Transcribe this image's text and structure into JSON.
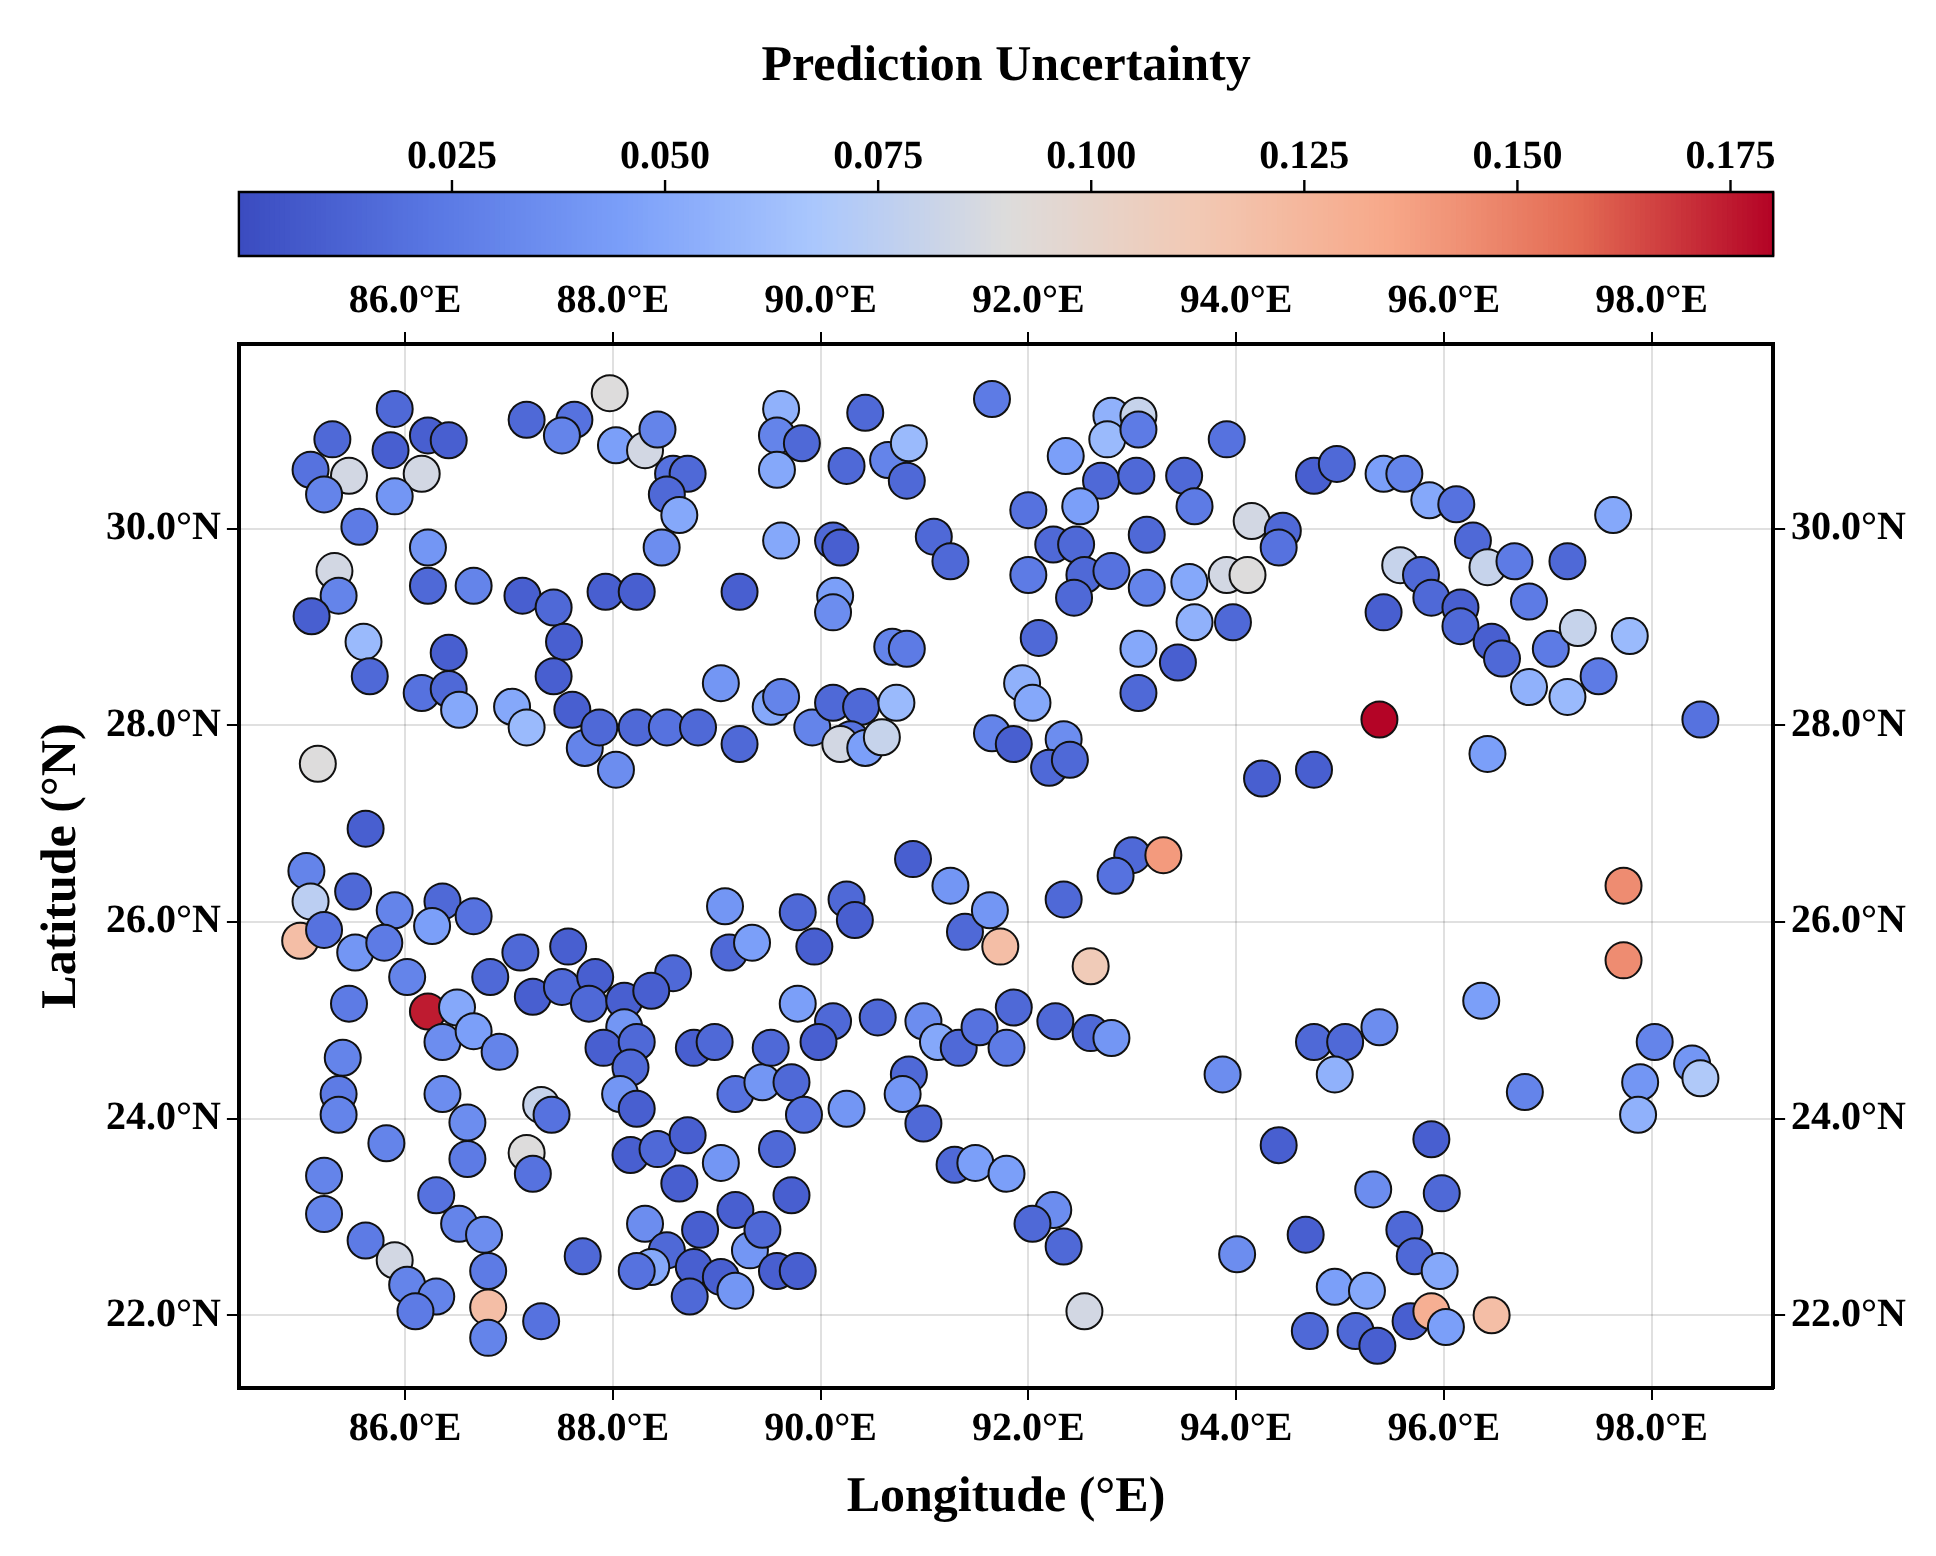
{
  "chart_data": {
    "type": "scatter",
    "xlabel": "Longitude (°E)",
    "ylabel": "Latitude (°N)",
    "clabel": "Prediction Uncertainty",
    "marker": "circle",
    "grid": true,
    "x": [
      85.3,
      85.09,
      85.46,
      85.22,
      85.9,
      85.86,
      86.22,
      86.42,
      86.16,
      85.9,
      85.56,
      85.32,
      85.36,
      85.1,
      85.6,
      85.66,
      86.22,
      86.22,
      86.66,
      86.16,
      86.42,
      86.42,
      86.52,
      87.03,
      87.17,
      87.17,
      87.63,
      87.51,
      87.97,
      88.03,
      88.31,
      88.43,
      88.58,
      88.72,
      88.52,
      88.64,
      88.47,
      87.13,
      87.43,
      87.53,
      87.43,
      87.61,
      87.73,
      87.87,
      88.23,
      88.52,
      88.82,
      88.03,
      87.93,
      88.23,
      89.22,
      89.04,
      89.22,
      89.52,
      89.62,
      89.92,
      90.12,
      90.39,
      90.29,
      90.19,
      90.43,
      90.59,
      90.73,
      90.12,
      90.19,
      89.62,
      89.58,
      89.82,
      89.58,
      89.62,
      90.43,
      90.25,
      90.65,
      90.85,
      90.83,
      91.09,
      91.25,
      90.14,
      90.12,
      90.69,
      90.83,
      91.65,
      85.16,
      85.62,
      90.89,
      92.8,
      93.06,
      92.76,
      93.06,
      92.36,
      93.91,
      92.7,
      93.04,
      93.5,
      92.0,
      92.5,
      93.6,
      92.24,
      92.46,
      93.14,
      92.0,
      92.54,
      92.8,
      92.44,
      93.14,
      93.55,
      94.15,
      94.45,
      94.41,
      93.91,
      94.11,
      93.6,
      93.97,
      93.06,
      93.44,
      93.06,
      92.1,
      91.94,
      92.04,
      91.65,
      91.86,
      92.34,
      92.2,
      92.4,
      94.25,
      94.75,
      95.38,
      94.75,
      94.97,
      95.42,
      95.62,
      95.86,
      96.12,
      95.58,
      95.78,
      96.28,
      96.42,
      96.68,
      97.19,
      95.42,
      95.88,
      96.16,
      96.16,
      96.46,
      96.82,
      96.56,
      97.03,
      97.29,
      97.49,
      96.82,
      97.19,
      97.79,
      97.63,
      98.47,
      96.42,
      85.05,
      85.09,
      84.99,
      85.22,
      85.5,
      85.52,
      85.9,
      85.8,
      86.36,
      86.26,
      86.66,
      86.02,
      86.22,
      86.5,
      86.36,
      86.66,
      86.91,
      85.46,
      85.4,
      85.36,
      85.36,
      85.82,
      85.22,
      85.22,
      85.62,
      85.9,
      86.02,
      86.3,
      86.1,
      86.8,
      86.8,
      87.31,
      86.36,
      86.6,
      86.6,
      86.3,
      86.52,
      86.76,
      86.8,
      87.31,
      87.41,
      87.17,
      87.23,
      87.71,
      87.11,
      86.82,
      87.23,
      87.57,
      87.51,
      87.83,
      87.77,
      88.11,
      88.58,
      88.37,
      88.11,
      87.91,
      88.23,
      88.78,
      88.98,
      88.17,
      88.07,
      88.23,
      88.17,
      88.43,
      88.72,
      89.04,
      88.64,
      88.31,
      88.52,
      88.84,
      88.78,
      89.32,
      89.18,
      89.44,
      89.04,
      88.74,
      89.18,
      89.58,
      89.78,
      88.37,
      88.23,
      89.18,
      89.44,
      89.72,
      89.84,
      89.58,
      89.72,
      89.52,
      89.08,
      89.12,
      89.34,
      89.78,
      90.25,
      89.94,
      90.33,
      89.78,
      90.12,
      89.98,
      90.25,
      90.55,
      91.25,
      91.39,
      91.63,
      91.73,
      90.99,
      91.13,
      90.85,
      90.79,
      90.99,
      91.33,
      91.53,
      91.29,
      91.49,
      93.0,
      93.3,
      92.84,
      92.34,
      92.6,
      91.86,
      92.26,
      92.6,
      92.8,
      91.79,
      93.87,
      94.75,
      95.05,
      95.38,
      94.95,
      96.36,
      96.78,
      98.03,
      97.89,
      97.87,
      98.39,
      98.47,
      97.73,
      97.73,
      94.41,
      95.88,
      95.32,
      95.98,
      94.67,
      94.01,
      91.79,
      92.24,
      92.04,
      92.34,
      92.54,
      95.62,
      95.72,
      95.96,
      94.95,
      95.26,
      94.71,
      95.15,
      95.36,
      95.68,
      95.88,
      96.02,
      96.46
    ],
    "values": [
      30.91,
      30.6,
      30.54,
      30.35,
      31.22,
      30.8,
      30.95,
      30.9,
      30.56,
      30.33,
      30.02,
      29.57,
      29.32,
      29.11,
      28.85,
      28.5,
      29.81,
      29.42,
      29.42,
      28.33,
      28.74,
      28.37,
      28.16,
      28.19,
      27.98,
      31.11,
      31.11,
      30.95,
      31.38,
      30.85,
      30.8,
      31.01,
      30.56,
      30.56,
      30.35,
      30.14,
      29.81,
      29.32,
      29.2,
      28.85,
      28.5,
      28.16,
      27.77,
      27.98,
      27.98,
      27.98,
      27.98,
      27.55,
      29.36,
      29.36,
      29.36,
      28.43,
      27.81,
      28.19,
      28.29,
      27.98,
      28.23,
      28.19,
      27.86,
      27.81,
      27.77,
      27.88,
      28.23,
      29.88,
      29.81,
      31.22,
      30.95,
      30.87,
      30.6,
      29.88,
      31.18,
      30.64,
      30.7,
      30.87,
      30.49,
      29.92,
      29.67,
      29.32,
      29.15,
      28.8,
      28.78,
      31.32,
      27.61,
      26.95,
      26.64,
      31.15,
      31.15,
      30.91,
      31.01,
      30.74,
      30.91,
      30.49,
      30.54,
      30.54,
      30.19,
      30.23,
      30.23,
      29.84,
      29.84,
      29.94,
      29.53,
      29.53,
      29.57,
      29.3,
      29.4,
      29.46,
      30.08,
      29.98,
      29.81,
      29.53,
      29.53,
      29.05,
      29.05,
      28.78,
      28.64,
      28.33,
      28.89,
      28.43,
      28.23,
      27.92,
      27.81,
      27.86,
      27.57,
      27.65,
      27.46,
      27.55,
      28.06,
      30.54,
      30.66,
      30.56,
      30.56,
      30.29,
      30.25,
      29.63,
      29.53,
      29.88,
      29.61,
      29.67,
      29.67,
      29.15,
      29.3,
      29.2,
      29.01,
      28.85,
      29.26,
      28.68,
      28.78,
      28.99,
      28.5,
      28.39,
      28.29,
      28.91,
      30.14,
      28.06,
      27.71,
      26.52,
      26.21,
      25.81,
      25.92,
      26.31,
      25.69,
      26.12,
      25.79,
      26.21,
      25.96,
      26.06,
      25.44,
      25.09,
      25.13,
      24.78,
      24.89,
      24.68,
      25.17,
      24.62,
      24.25,
      24.04,
      23.75,
      23.42,
      23.03,
      22.76,
      22.56,
      22.31,
      22.19,
      22.04,
      22.08,
      21.77,
      21.94,
      24.25,
      23.96,
      23.59,
      23.22,
      22.93,
      22.82,
      22.45,
      24.14,
      24.04,
      23.65,
      23.44,
      22.6,
      25.69,
      25.44,
      25.24,
      25.75,
      25.34,
      25.44,
      25.17,
      25.2,
      25.48,
      25.3,
      24.93,
      24.72,
      24.78,
      24.72,
      24.78,
      24.52,
      24.25,
      24.1,
      23.63,
      23.69,
      23.83,
      23.55,
      23.34,
      22.93,
      22.66,
      22.87,
      22.49,
      22.66,
      23.07,
      22.87,
      22.39,
      22.19,
      22.25,
      22.45,
      22.45,
      22.49,
      22.45,
      24.25,
      24.37,
      24.37,
      24.04,
      23.69,
      23.22,
      24.72,
      26.16,
      25.69,
      25.79,
      26.1,
      26.23,
      25.75,
      26.02,
      25.17,
      24.99,
      24.78,
      24.1,
      25.03,
      26.37,
      25.9,
      26.12,
      25.75,
      24.99,
      24.78,
      24.45,
      24.25,
      23.95,
      24.72,
      24.93,
      23.53,
      23.55,
      26.68,
      26.68,
      26.47,
      26.23,
      25.55,
      25.13,
      24.99,
      24.87,
      24.82,
      24.72,
      24.45,
      24.78,
      24.78,
      24.93,
      24.45,
      25.2,
      24.27,
      24.78,
      24.37,
      24.04,
      24.56,
      24.41,
      26.37,
      25.61,
      23.73,
      23.79,
      23.28,
      23.24,
      22.82,
      22.62,
      23.44,
      23.07,
      22.93,
      22.7,
      22.04,
      22.87,
      22.6,
      22.45,
      22.29,
      22.25,
      21.84,
      21.84,
      21.69,
      21.94,
      22.04,
      21.88,
      22.0
    ],
    "cvalues": [
      0.015,
      0.02,
      0.085,
      0.03,
      0.015,
      0.01,
      0.01,
      0.01,
      0.085,
      0.04,
      0.025,
      0.085,
      0.03,
      0.01,
      0.06,
      0.015,
      0.04,
      0.015,
      0.03,
      0.02,
      0.01,
      0.015,
      0.05,
      0.05,
      0.06,
      0.015,
      0.02,
      0.03,
      0.09,
      0.045,
      0.085,
      0.03,
      0.02,
      0.015,
      0.015,
      0.05,
      0.035,
      0.01,
      0.015,
      0.01,
      0.01,
      0.01,
      0.03,
      0.015,
      0.015,
      0.02,
      0.015,
      0.035,
      0.01,
      0.01,
      0.01,
      0.04,
      0.015,
      0.05,
      0.03,
      0.03,
      0.015,
      0.015,
      0.02,
      0.085,
      0.045,
      0.08,
      0.06,
      0.015,
      0.01,
      0.055,
      0.03,
      0.015,
      0.05,
      0.05,
      0.015,
      0.015,
      0.03,
      0.06,
      0.015,
      0.015,
      0.015,
      0.045,
      0.035,
      0.03,
      0.025,
      0.025,
      0.09,
      0.01,
      0.01,
      0.055,
      0.08,
      0.06,
      0.025,
      0.045,
      0.02,
      0.015,
      0.015,
      0.015,
      0.02,
      0.045,
      0.025,
      0.015,
      0.015,
      0.015,
      0.025,
      0.015,
      0.02,
      0.015,
      0.03,
      0.05,
      0.085,
      0.015,
      0.02,
      0.085,
      0.09,
      0.055,
      0.015,
      0.05,
      0.01,
      0.015,
      0.015,
      0.055,
      0.05,
      0.03,
      0.01,
      0.035,
      0.015,
      0.015,
      0.01,
      0.01,
      0.18,
      0.01,
      0.015,
      0.045,
      0.03,
      0.05,
      0.02,
      0.08,
      0.015,
      0.015,
      0.08,
      0.025,
      0.015,
      0.01,
      0.015,
      0.01,
      0.015,
      0.01,
      0.025,
      0.015,
      0.025,
      0.08,
      0.025,
      0.055,
      0.06,
      0.06,
      0.05,
      0.02,
      0.045,
      0.03,
      0.075,
      0.12,
      0.02,
      0.015,
      0.04,
      0.03,
      0.025,
      0.015,
      0.045,
      0.02,
      0.03,
      0.175,
      0.05,
      0.035,
      0.045,
      0.03,
      0.025,
      0.03,
      0.025,
      0.03,
      0.03,
      0.03,
      0.03,
      0.025,
      0.085,
      0.03,
      0.03,
      0.025,
      0.12,
      0.03,
      0.02,
      0.035,
      0.035,
      0.025,
      0.02,
      0.03,
      0.035,
      0.025,
      0.08,
      0.02,
      0.09,
      0.02,
      0.015,
      0.015,
      0.015,
      0.01,
      0.01,
      0.015,
      0.01,
      0.015,
      0.01,
      0.015,
      0.01,
      0.04,
      0.01,
      0.015,
      0.01,
      0.015,
      0.015,
      0.04,
      0.01,
      0.01,
      0.015,
      0.01,
      0.04,
      0.01,
      0.035,
      0.015,
      0.01,
      0.01,
      0.04,
      0.01,
      0.015,
      0.01,
      0.015,
      0.04,
      0.01,
      0.01,
      0.05,
      0.02,
      0.02,
      0.04,
      0.015,
      0.02,
      0.015,
      0.01,
      0.015,
      0.04,
      0.015,
      0.045,
      0.015,
      0.015,
      0.01,
      0.01,
      0.045,
      0.015,
      0.01,
      0.04,
      0.015,
      0.04,
      0.015,
      0.04,
      0.12,
      0.035,
      0.05,
      0.015,
      0.04,
      0.015,
      0.015,
      0.02,
      0.015,
      0.045,
      0.015,
      0.14,
      0.02,
      0.015,
      0.11,
      0.015,
      0.015,
      0.015,
      0.04,
      0.025,
      0.035,
      0.015,
      0.015,
      0.035,
      0.055,
      0.045,
      0.03,
      0.03,
      0.04,
      0.055,
      0.04,
      0.07,
      0.145,
      0.145,
      0.01,
      0.01,
      0.035,
      0.015,
      0.01,
      0.035,
      0.045,
      0.035,
      0.015,
      0.015,
      0.085,
      0.015,
      0.015,
      0.05,
      0.045,
      0.05,
      0.015,
      0.015,
      0.01,
      0.01,
      0.13,
      0.045,
      0.12
    ],
    "xlim": [
      84.4,
      99.17
    ],
    "ylim": [
      21.26,
      31.88
    ],
    "x2lim": [
      84.4,
      99.17
    ],
    "y2lim": [
      21.26,
      31.88
    ],
    "xticks": [
      {
        "value": 86,
        "label": "86.0°E"
      },
      {
        "value": 88,
        "label": "88.0°E"
      },
      {
        "value": 90,
        "label": "90.0°E"
      },
      {
        "value": 92,
        "label": "92.0°E"
      },
      {
        "value": 94,
        "label": "94.0°E"
      },
      {
        "value": 96,
        "label": "96.0°E"
      },
      {
        "value": 98,
        "label": "98.0°E"
      }
    ],
    "x2ticks": [
      {
        "value": 86,
        "label": "86.0°E"
      },
      {
        "value": 88,
        "label": "88.0°E"
      },
      {
        "value": 90,
        "label": "90.0°E"
      },
      {
        "value": 92,
        "label": "92.0°E"
      },
      {
        "value": 94,
        "label": "94.0°E"
      },
      {
        "value": 96,
        "label": "96.0°E"
      },
      {
        "value": 98,
        "label": "98.0°E"
      }
    ],
    "yticks": [
      {
        "value": 22,
        "label": "22.0°N"
      },
      {
        "value": 24,
        "label": "24.0°N"
      },
      {
        "value": 26,
        "label": "26.0°N"
      },
      {
        "value": 28,
        "label": "28.0°N"
      },
      {
        "value": 30,
        "label": "30.0°N"
      }
    ],
    "y2ticks": [
      {
        "value": 22,
        "label": "22.0°N"
      },
      {
        "value": 24,
        "label": "24.0°N"
      },
      {
        "value": 26,
        "label": "26.0°N"
      },
      {
        "value": 28,
        "label": "28.0°N"
      },
      {
        "value": 30,
        "label": "30.0°N"
      }
    ],
    "clim": [
      0,
      0.18
    ],
    "cticks": [
      {
        "value": 0.025,
        "label": "0.025"
      },
      {
        "value": 0.05,
        "label": "0.050"
      },
      {
        "value": 0.075,
        "label": "0.075"
      },
      {
        "value": 0.1,
        "label": "0.100"
      },
      {
        "value": 0.125,
        "label": "0.125"
      },
      {
        "value": 0.15,
        "label": "0.150"
      },
      {
        "value": 0.175,
        "label": "0.175"
      }
    ]
  }
}
